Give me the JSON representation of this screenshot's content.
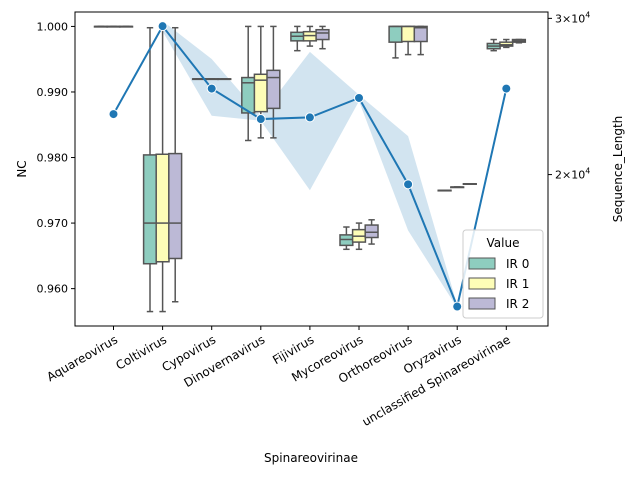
{
  "chart_data": {
    "type": "box+line",
    "title": "",
    "xlabel": "Spinareovirinae",
    "ylabel_left": "NC",
    "ylabel_right": "Sequence_Length",
    "y_left_ticks": [
      "0.960",
      "0.970",
      "0.980",
      "0.990",
      "1.000"
    ],
    "y_right_ticks": [
      {
        "base": "2",
        "mult": "×",
        "pow10": "10",
        "exp": "4",
        "value": 20000
      },
      {
        "base": "3",
        "mult": "×",
        "pow10": "10",
        "exp": "4",
        "value": 30000
      }
    ],
    "y_left_range": [
      0.9543,
      1.0022
    ],
    "y_right_scale": "log",
    "y_right_range": [
      13500,
      30500
    ],
    "categories": [
      "Aquareovirus",
      "Coltivirus",
      "Cypovirus",
      "Dinovernavirus",
      "Fijivirus",
      "Mycoreovirus",
      "Orthoreovirus",
      "Oryzavirus",
      "unclassified Spinareovirinae"
    ],
    "legend": {
      "title": "Value",
      "placement": "lower-right",
      "entries": [
        {
          "label": "IR 0",
          "color": "#8ecdbf"
        },
        {
          "label": "IR 1",
          "color": "#fdfdb7"
        },
        {
          "label": "IR 2",
          "color": "#bcb9d6"
        }
      ]
    },
    "box_series": [
      {
        "name": "IR 0",
        "boxes": [
          {
            "category": "Aquareovirus",
            "min": 1.0,
            "q1": 1.0,
            "median": 1.0,
            "q3": 1.0,
            "max": 1.0
          },
          {
            "category": "Coltivirus",
            "min": 0.9565,
            "q1": 0.9638,
            "median": 0.97,
            "q3": 0.9804,
            "max": 0.9998
          },
          {
            "category": "Cypovirus",
            "min": 0.992,
            "q1": 0.992,
            "median": 0.992,
            "q3": 0.992,
            "max": 0.992
          },
          {
            "category": "Dinovernavirus",
            "min": 0.9826,
            "q1": 0.9868,
            "median": 0.9914,
            "q3": 0.9922,
            "max": 1.0
          },
          {
            "category": "Fijivirus",
            "min": 0.9963,
            "q1": 0.9978,
            "median": 0.9985,
            "q3": 0.9991,
            "max": 1.0
          },
          {
            "category": "Mycoreovirus",
            "min": 0.966,
            "q1": 0.9666,
            "median": 0.9675,
            "q3": 0.9682,
            "max": 0.9694
          },
          {
            "category": "Orthoreovirus",
            "min": 0.9952,
            "q1": 0.9976,
            "median": 1.0,
            "q3": 1.0,
            "max": 1.0
          },
          {
            "category": "Oryzavirus",
            "min": 0.975,
            "q1": 0.975,
            "median": 0.975,
            "q3": 0.975,
            "max": 0.975
          },
          {
            "category": "unclassified Spinareovirinae",
            "min": 0.9963,
            "q1": 0.9966,
            "median": 0.997,
            "q3": 0.9974,
            "max": 0.998
          }
        ]
      },
      {
        "name": "IR 1",
        "boxes": [
          {
            "category": "Aquareovirus",
            "min": 1.0,
            "q1": 1.0,
            "median": 1.0,
            "q3": 1.0,
            "max": 1.0
          },
          {
            "category": "Coltivirus",
            "min": 0.9565,
            "q1": 0.9641,
            "median": 0.97,
            "q3": 0.9805,
            "max": 0.9998
          },
          {
            "category": "Cypovirus",
            "min": 0.992,
            "q1": 0.992,
            "median": 0.992,
            "q3": 0.992,
            "max": 0.992
          },
          {
            "category": "Dinovernavirus",
            "min": 0.983,
            "q1": 0.987,
            "median": 0.9918,
            "q3": 0.9927,
            "max": 1.0
          },
          {
            "category": "Fijivirus",
            "min": 0.997,
            "q1": 0.9978,
            "median": 0.9986,
            "q3": 0.9992,
            "max": 1.0
          },
          {
            "category": "Mycoreovirus",
            "min": 0.966,
            "q1": 0.9671,
            "median": 0.968,
            "q3": 0.969,
            "max": 0.97
          },
          {
            "category": "Orthoreovirus",
            "min": 0.9957,
            "q1": 0.9977,
            "median": 1.0,
            "q3": 1.0,
            "max": 1.0
          },
          {
            "category": "Oryzavirus",
            "min": 0.9755,
            "q1": 0.9755,
            "median": 0.9755,
            "q3": 0.9755,
            "max": 0.9755
          },
          {
            "category": "unclassified Spinareovirinae",
            "min": 0.9968,
            "q1": 0.997,
            "median": 0.9972,
            "q3": 0.9976,
            "max": 0.998
          }
        ]
      },
      {
        "name": "IR 2",
        "boxes": [
          {
            "category": "Aquareovirus",
            "min": 1.0,
            "q1": 1.0,
            "median": 1.0,
            "q3": 1.0,
            "max": 1.0
          },
          {
            "category": "Coltivirus",
            "min": 0.958,
            "q1": 0.9646,
            "median": 0.97,
            "q3": 0.9806,
            "max": 0.9998
          },
          {
            "category": "Cypovirus",
            "min": 0.992,
            "q1": 0.992,
            "median": 0.992,
            "q3": 0.992,
            "max": 0.992
          },
          {
            "category": "Dinovernavirus",
            "min": 0.983,
            "q1": 0.9875,
            "median": 0.9922,
            "q3": 0.9933,
            "max": 1.0
          },
          {
            "category": "Fijivirus",
            "min": 0.9966,
            "q1": 0.998,
            "median": 0.999,
            "q3": 0.9995,
            "max": 1.0
          },
          {
            "category": "Mycoreovirus",
            "min": 0.9668,
            "q1": 0.9678,
            "median": 0.9686,
            "q3": 0.9697,
            "max": 0.9705
          },
          {
            "category": "Orthoreovirus",
            "min": 0.9957,
            "q1": 0.9977,
            "median": 0.9998,
            "q3": 1.0,
            "max": 1.0
          },
          {
            "category": "Oryzavirus",
            "min": 0.976,
            "q1": 0.976,
            "median": 0.976,
            "q3": 0.976,
            "max": 0.976
          },
          {
            "category": "unclassified Spinareovirinae",
            "min": 0.9975,
            "q1": 0.9976,
            "median": 0.9978,
            "q3": 0.998,
            "max": 0.998
          }
        ]
      }
    ],
    "line_series": {
      "name": "Sequence_Length",
      "color": "#1f77b4",
      "band_color": "#1f77b4",
      "points": [
        {
          "category": "Aquareovirus",
          "value": 23400
        },
        {
          "category": "Coltivirus",
          "value": 29400,
          "band": [
            29000,
            29800
          ]
        },
        {
          "category": "Cypovirus",
          "value": 25000,
          "band": [
            23300,
            27000
          ]
        },
        {
          "category": "Dinovernavirus",
          "value": 23100,
          "band": [
            23000,
            23300
          ]
        },
        {
          "category": "Fijivirus",
          "value": 23200,
          "band": [
            19200,
            27500
          ]
        },
        {
          "category": "Mycoreovirus",
          "value": 24400,
          "band": [
            24200,
            24600
          ]
        },
        {
          "category": "Orthoreovirus",
          "value": 19500,
          "band": [
            17300,
            22100
          ]
        },
        {
          "category": "Oryzavirus",
          "value": 14200,
          "band": [
            14150,
            14250
          ]
        },
        {
          "category": "unclassified Spinareovirinae",
          "value": 25000
        }
      ]
    }
  }
}
